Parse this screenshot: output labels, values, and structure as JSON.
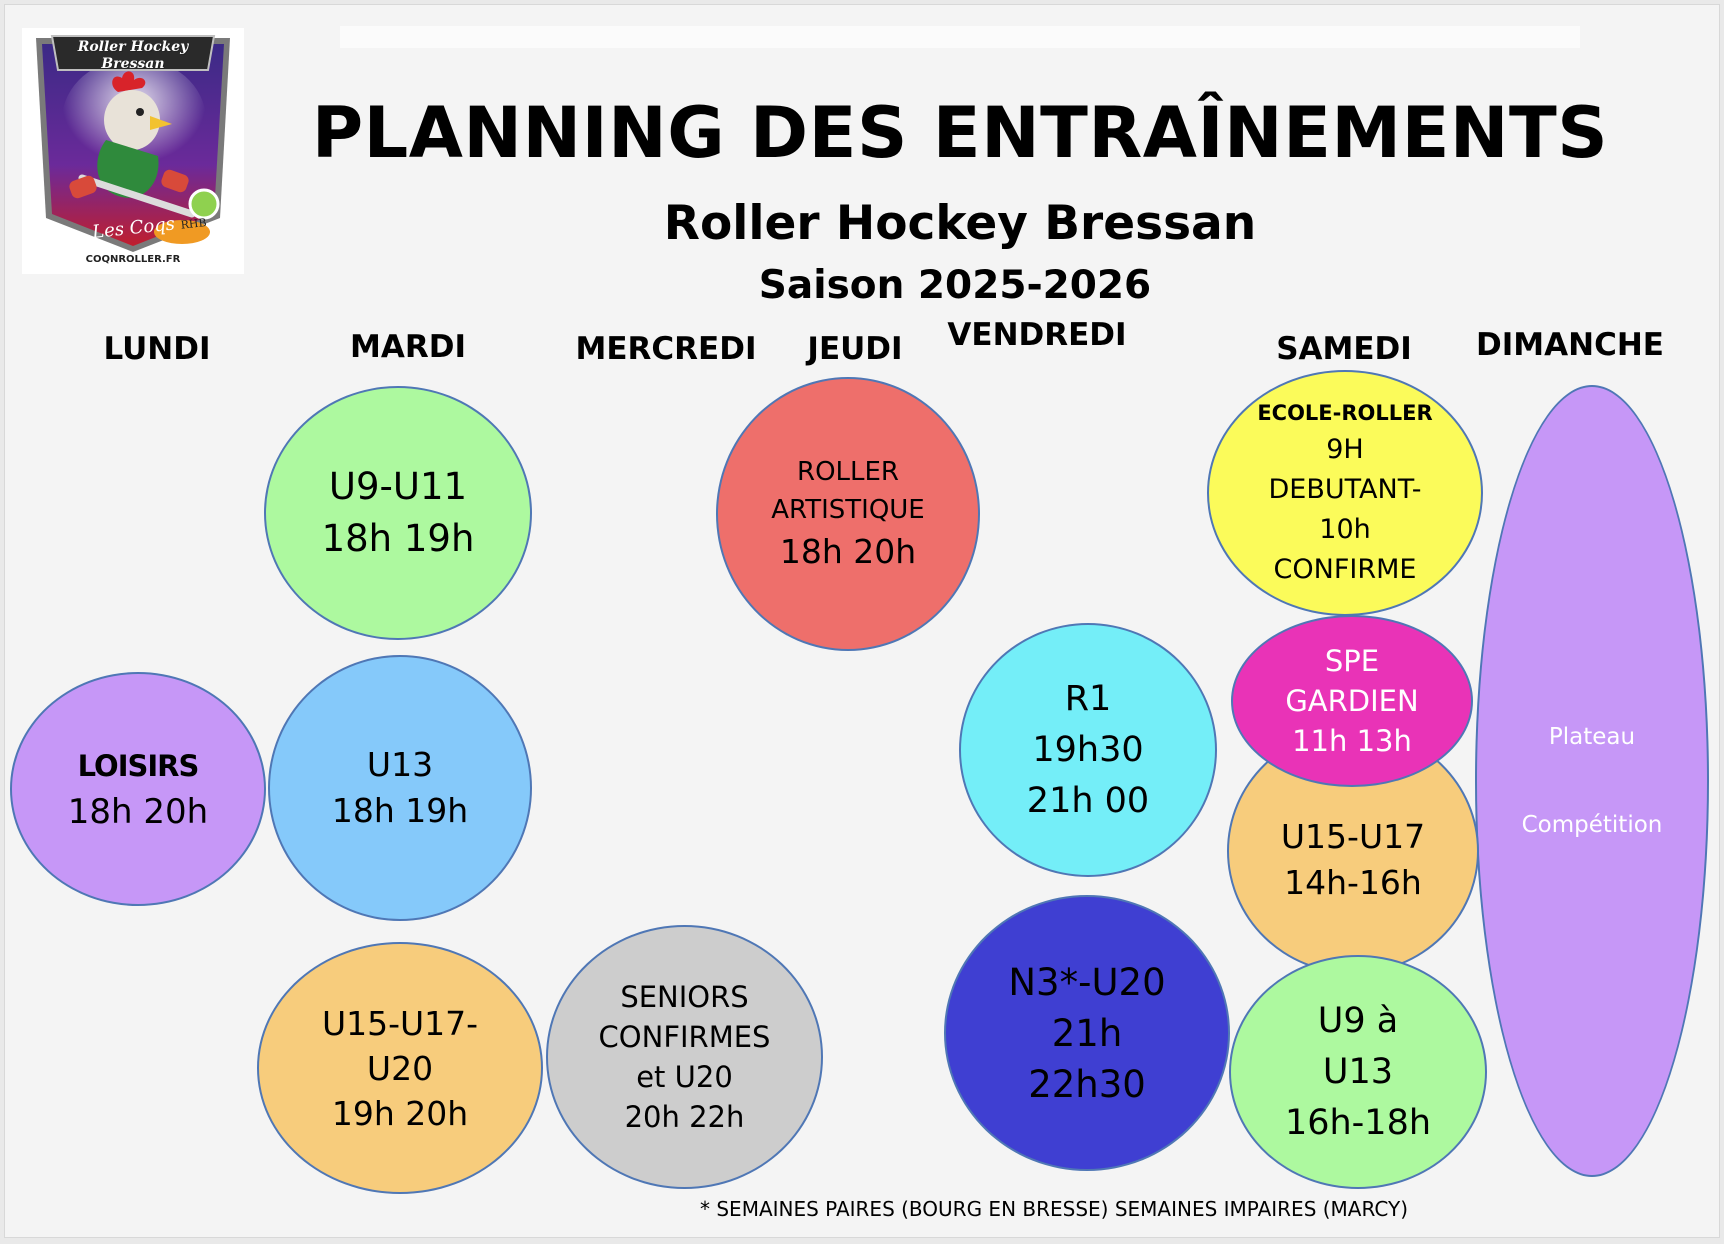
{
  "header": {
    "title": "PLANNING DES ENTRAÎNEMENTS",
    "club": "Roller Hockey Bressan",
    "season": "Saison 2025-2026"
  },
  "logo": {
    "name_line1": "Roller Hockey",
    "name_line2": "Bressan",
    "tagline": "Les Coqs",
    "initials": "RHB",
    "site": "COQNROLLER.FR"
  },
  "days": {
    "lundi": "LUNDI",
    "mardi": "MARDI",
    "mercredi": "MERCREDI",
    "jeudi": "JEUDI",
    "vendredi": "VENDREDI",
    "samedi": "SAMEDI",
    "dimanche": "DIMANCHE"
  },
  "sessions": {
    "lundi_loisirs": {
      "lines": [
        "LOISIRS",
        "18h 20h"
      ],
      "color": "#c697f7"
    },
    "mardi_u9_u11": {
      "lines": [
        "U9-U11",
        "18h 19h"
      ],
      "color": "#adf99f"
    },
    "mardi_u13": {
      "lines": [
        "U13",
        "18h 19h"
      ],
      "color": "#85c9fa"
    },
    "mardi_u15_u20": {
      "lines": [
        "U15-U17-",
        "U20",
        "19h 20h"
      ],
      "color": "#f7cc7c"
    },
    "mercredi_seniors": {
      "lines": [
        "SENIORS",
        "CONFIRMES",
        "et U20",
        "20h 22h"
      ],
      "color": "#cdcdcd"
    },
    "jeudi_roller_artistique": {
      "lines": [
        "ROLLER",
        "ARTISTIQUE",
        "18h 20h"
      ],
      "color": "#ee6f6b"
    },
    "vendredi_r1": {
      "lines": [
        "R1",
        "19h30",
        "21h 00"
      ],
      "color": "#74eef8"
    },
    "vendredi_n3_u20": {
      "lines": [
        "N3*-U20",
        "21h",
        "22h30"
      ],
      "color": "#3f3fd2"
    },
    "samedi_ecole_roller": {
      "lines": [
        "ECOLE-ROLLER",
        "9H",
        "DEBUTANT-",
        "10h",
        "CONFIRME"
      ],
      "color": "#fbfb5a"
    },
    "samedi_spe_gardien": {
      "lines": [
        "SPE",
        "GARDIEN",
        "11h 13h"
      ],
      "color": "#e933b7"
    },
    "samedi_u15_u17": {
      "lines": [
        "U15-U17",
        "14h-16h"
      ],
      "color": "#f7cc7c"
    },
    "samedi_u9_u13": {
      "lines": [
        "U9 à",
        "U13",
        "16h-18h"
      ],
      "color": "#adf99f"
    },
    "dimanche_plateau": {
      "lines": [
        "Plateau",
        "Compétition"
      ],
      "color": "#c697f7"
    }
  },
  "footnote": "* SEMAINES PAIRES (BOURG EN BRESSE) SEMAINES IMPAIRES (MARCY)"
}
